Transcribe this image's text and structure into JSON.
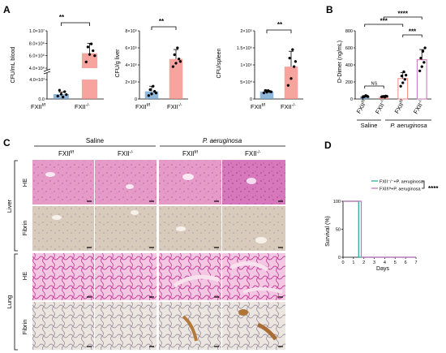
{
  "panels": {
    "A": "A",
    "B": "B",
    "C": "C",
    "D": "D"
  },
  "panel_c": {
    "group_saline": "Saline",
    "group_pa": "P. aeruginosa",
    "col_fxii_ff": "FXII",
    "col_fxii_ff_sup": "f/f",
    "col_fxii_ko": "FXII",
    "col_fxii_ko_sup": "-/-",
    "col_fxii_ff_2": "FXII",
    "col_fxii_ff_2_sup": "f/f",
    "col_fxii_ko_2": "FXII",
    "col_fxii_ko_2_sup": "-/-",
    "organ_liver": "Liver",
    "organ_lung": "Lung",
    "stain_he_1": "HE",
    "stain_fibrin_1": "Fibrin",
    "stain_he_2": "HE",
    "stain_fibrin_2": "Fibrin"
  },
  "chart_data": [
    {
      "id": "A1",
      "type": "bar",
      "ylabel": "CFU/mL blood",
      "categories": [
        "FXII",
        "FXII"
      ],
      "category_sups": [
        "f/f",
        "-/-"
      ],
      "y_axis_break": true,
      "yticks_upper": [
        "4.0×10⁶",
        "6.0×10⁶",
        "8.0×10⁶",
        "1.0×10⁷"
      ],
      "yticks_lower": [
        "0.0",
        "4.0×10³"
      ],
      "ylim_upper": [
        4000000,
        10000000
      ],
      "ylim_lower": [
        0,
        4000
      ],
      "values": [
        1000,
        6400000
      ],
      "errors_segment": [
        "lower",
        "upper"
      ],
      "errors": [
        400,
        1600000
      ],
      "points": [
        [
          600,
          1000,
          1500,
          1800,
          400,
          900
        ],
        [
          5000000,
          6200000,
          6800000,
          7400000,
          7900000,
          6000000
        ]
      ],
      "colors": [
        "#6a9fcf",
        "#f4867f"
      ],
      "significance": "**"
    },
    {
      "id": "A2",
      "type": "bar",
      "ylabel": "CFU/g liver",
      "categories": [
        "FXII",
        "FXII"
      ],
      "category_sups": [
        "f/f",
        "-/-"
      ],
      "yticks": [
        "0",
        "2×10⁵",
        "4×10⁵",
        "6×10⁵",
        "8×10⁵"
      ],
      "ylim": [
        0,
        800000
      ],
      "values": [
        90000,
        470000
      ],
      "errors": [
        60000,
        110000
      ],
      "points": [
        [
          40000,
          60000,
          90000,
          110000,
          150000,
          70000
        ],
        [
          380000,
          420000,
          470000,
          520000,
          600000,
          440000
        ]
      ],
      "colors": [
        "#6a9fcf",
        "#f4867f"
      ],
      "significance": "**"
    },
    {
      "id": "A3",
      "type": "bar",
      "ylabel": "CFU/spleen",
      "categories": [
        "FXII",
        "FXII"
      ],
      "category_sups": [
        "f/f",
        "-/-"
      ],
      "yticks": [
        "0",
        "5×10⁴",
        "1×10⁵",
        "1.5×10⁵",
        "2×10⁵"
      ],
      "ylim": [
        0,
        200000
      ],
      "values": [
        22000,
        95000
      ],
      "errors": [
        5000,
        45000
      ],
      "points": [
        [
          18000,
          20000,
          22000,
          25000,
          24000,
          21000
        ],
        [
          40000,
          60000,
          95000,
          120000,
          145000,
          110000
        ]
      ],
      "colors": [
        "#6a9fcf",
        "#f4867f"
      ],
      "significance": "**"
    },
    {
      "id": "B",
      "type": "bar",
      "ylabel": "D-Dimer (ng/mL)",
      "categories": [
        "FXII",
        "FXII",
        "FXII",
        "FXII"
      ],
      "category_sups": [
        "f/f",
        "-/-",
        "f/f",
        "-/-"
      ],
      "groups": [
        "Saline",
        "P. aeruginosa"
      ],
      "yticks": [
        "0",
        "200",
        "400",
        "600",
        "800"
      ],
      "ylim": [
        0,
        800
      ],
      "values": [
        30,
        30,
        240,
        460
      ],
      "errors": [
        10,
        10,
        70,
        120
      ],
      "points": [
        [
          20,
          30,
          35,
          25,
          40,
          28
        ],
        [
          25,
          30,
          35,
          28,
          22,
          32
        ],
        [
          150,
          190,
          230,
          270,
          320,
          280
        ],
        [
          330,
          380,
          430,
          480,
          560,
          600
        ]
      ],
      "colors": [
        "#6a9fcf",
        "#f4867f",
        "#f4867f",
        "#c770b8"
      ],
      "brackets": [
        {
          "from": 0,
          "to": 1,
          "label": "NS",
          "level": 1
        },
        {
          "from": 0,
          "to": 2,
          "label": "***",
          "level": 2
        },
        {
          "from": 2,
          "to": 3,
          "label": "***",
          "level": 1
        },
        {
          "from": 1,
          "to": 3,
          "label": "****",
          "level": 3
        }
      ]
    },
    {
      "id": "D",
      "type": "line",
      "ylabel": "Survival (%)",
      "xlabel": "Days",
      "x": [
        0,
        1,
        2,
        3,
        4,
        5,
        6,
        7
      ],
      "xlim": [
        0,
        7
      ],
      "ylim": [
        0,
        100
      ],
      "yticks": [
        "0",
        "50",
        "100"
      ],
      "xticks": [
        "0",
        "1",
        "2",
        "3",
        "4",
        "5",
        "6",
        "7"
      ],
      "series": [
        {
          "name": "FXII⁻/⁻+P. aeruginosa",
          "color": "#1aa88a",
          "steps": [
            [
              0,
              100
            ],
            [
              1.5,
              100
            ],
            [
              1.5,
              0
            ],
            [
              7,
              0
            ]
          ]
        },
        {
          "name": "FXIIᶠ/ᶠ+P. aeruginosa",
          "color": "#c770b8",
          "steps": [
            [
              0,
              100
            ],
            [
              1.75,
              100
            ],
            [
              1.75,
              0
            ],
            [
              7,
              0
            ]
          ]
        }
      ],
      "significance": "****"
    }
  ]
}
